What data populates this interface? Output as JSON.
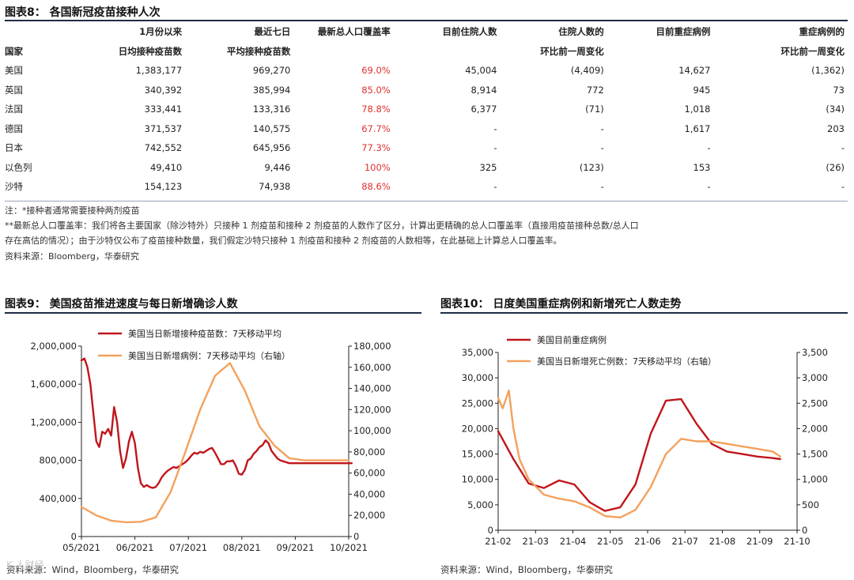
{
  "table": {
    "title": "图表8：   各国新冠疫苗接种人次",
    "header_row1": [
      "",
      "1月份以来",
      "最近七日",
      "最新总人口覆盖率",
      "目前住院人数",
      "住院人数的",
      "目前重症病例",
      "重症病例的"
    ],
    "header_row2": [
      "国家",
      "日均接种疫苗数",
      "平均接种疫苗数",
      "",
      "",
      "环比前一周变化",
      "",
      "环比前一周变化"
    ],
    "rows": [
      [
        "美国",
        "1,383,177",
        "969,270",
        "69.0%",
        "45,004",
        "(4,409)",
        "14,627",
        "(1,362)"
      ],
      [
        "英国",
        "340,392",
        "385,994",
        "85.0%",
        "8,914",
        "772",
        "945",
        "73"
      ],
      [
        "法国",
        "333,441",
        "133,316",
        "78.8%",
        "6,377",
        "(71)",
        "1,018",
        "(34)"
      ],
      [
        "德国",
        "371,537",
        "140,575",
        "67.7%",
        "-",
        "-",
        "1,617",
        "203"
      ],
      [
        "日本",
        "742,552",
        "645,956",
        "77.3%",
        "-",
        "-",
        "-",
        "-"
      ],
      [
        "以色列",
        "49,410",
        "9,446",
        "100%",
        "325",
        "(123)",
        "153",
        "(26)"
      ],
      [
        "沙特",
        "154,123",
        "74,938",
        "88.6%",
        "-",
        "-",
        "-",
        "-"
      ]
    ],
    "notes": [
      "注：*接种者通常需要接种两剂疫苗",
      "**最新总人口覆盖率：我们将各主要国家（除沙特外）只接种 1 剂疫苗和接种 2 剂疫苗的人数作了区分，计算出更精确的总人口覆盖率（直接用疫苗接种总数/总人口",
      "存在高估的情况）；由于沙特仅公布了疫苗接种数量，我们假定沙特只接种 1 剂疫苗和接种 2 剂疫苗的人数相等，在此基础上计算总人口覆盖率。",
      "资料来源：Bloomberg，华泰研究"
    ]
  },
  "colors": {
    "red": "#c0161c",
    "orange": "#f3a15d",
    "accent_red_text": "#e03030",
    "rule": "#1f2a44"
  },
  "chart_data": [
    {
      "type": "line",
      "title": "图表9：   美国疫苗推进速度与每日新增确诊人数",
      "x_tick_labels": [
        "05/2021",
        "06/2021",
        "07/2021",
        "08/2021",
        "09/2021",
        "10/2021"
      ],
      "y_left_ticks": [
        "0",
        "400,000",
        "800,000",
        "1,200,000",
        "1,600,000",
        "2,000,000"
      ],
      "y_left_lim": [
        0,
        2000000
      ],
      "y_right_ticks": [
        "0",
        "20,000",
        "40,000",
        "60,000",
        "80,000",
        "100,000",
        "120,000",
        "140,000",
        "160,000",
        "180,000"
      ],
      "y_right_lim": [
        0,
        180000
      ],
      "legend_position": "top",
      "series": [
        {
          "name": "美国当日新增接种疫苗数：7天移动平均",
          "axis": "left",
          "color": "#c0161c",
          "x": [
            0,
            2,
            4,
            6,
            8,
            10,
            12,
            14,
            16,
            18,
            20,
            22,
            24,
            26,
            28,
            30,
            32,
            34,
            36,
            38,
            40,
            42,
            44,
            46,
            48,
            50,
            52,
            54,
            56,
            58,
            60,
            62,
            64,
            66,
            68,
            70,
            72,
            74,
            76,
            78,
            80,
            82,
            84,
            86,
            88,
            90,
            92,
            94,
            96,
            98,
            100,
            102,
            104,
            106,
            108,
            110,
            112,
            114,
            116,
            118,
            120,
            122,
            124,
            126,
            128,
            130,
            132,
            134,
            136,
            138,
            140,
            142,
            144,
            146,
            148,
            150,
            152,
            154,
            156,
            158,
            160,
            162,
            164,
            166,
            168,
            170,
            172,
            174,
            176,
            178,
            180,
            182
          ],
          "values": [
            1850000,
            1870000,
            1780000,
            1600000,
            1300000,
            1000000,
            940000,
            1100000,
            1080000,
            1130000,
            1060000,
            1360000,
            1200000,
            900000,
            720000,
            820000,
            1000000,
            1100000,
            980000,
            720000,
            560000,
            520000,
            540000,
            520000,
            510000,
            520000,
            560000,
            620000,
            660000,
            690000,
            710000,
            730000,
            720000,
            740000,
            760000,
            780000,
            810000,
            850000,
            880000,
            870000,
            890000,
            880000,
            900000,
            920000,
            930000,
            880000,
            820000,
            760000,
            760000,
            790000,
            790000,
            800000,
            740000,
            660000,
            650000,
            700000,
            800000,
            820000,
            870000,
            900000,
            940000,
            960000,
            1010000,
            980000,
            900000,
            860000,
            820000,
            800000,
            790000,
            780000,
            770000,
            770000,
            770000,
            770000,
            770000,
            770000,
            770000,
            770000,
            770000,
            770000,
            770000,
            770000,
            770000,
            770000,
            770000,
            770000,
            770000,
            770000,
            770000,
            770000,
            770000,
            770000
          ]
        },
        {
          "name": "美国当日新增病例：7天移动平均（右轴）",
          "axis": "right",
          "color": "#f3a15d",
          "x": [
            0,
            10,
            20,
            30,
            40,
            50,
            60,
            70,
            80,
            90,
            100,
            110,
            120,
            130,
            140,
            150,
            160,
            170,
            180
          ],
          "values": [
            28000,
            20000,
            15000,
            13500,
            14000,
            18000,
            42000,
            80000,
            120000,
            152000,
            164000,
            138000,
            104000,
            86000,
            74000,
            72000,
            72000,
            72000,
            72000
          ]
        }
      ]
    },
    {
      "type": "line",
      "title": "图表10：   日度美国重症病例和新增死亡人数走势",
      "x_tick_labels": [
        "21-02",
        "21-03",
        "21-04",
        "21-05",
        "21-06",
        "21-07",
        "21-08",
        "21-09",
        "21-10"
      ],
      "y_left_ticks": [
        "0",
        "5,000",
        "10,000",
        "15,000",
        "20,000",
        "25,000",
        "30,000",
        "35,000"
      ],
      "y_left_lim": [
        0,
        35000
      ],
      "y_right_ticks": [
        "0",
        "500",
        "1,000",
        "1,500",
        "2,000",
        "2,500",
        "3,000",
        "3,500"
      ],
      "y_right_lim": [
        0,
        3500
      ],
      "legend_position": "top",
      "series": [
        {
          "name": "美国目前重症病例",
          "axis": "left",
          "color": "#c0161c",
          "x": [
            0,
            0.5,
            1,
            1.5,
            2,
            2.5,
            3,
            3.5,
            4,
            4.5,
            5,
            5.5,
            6,
            6.5,
            7,
            7.5,
            8,
            8.5,
            9,
            9.25
          ],
          "values": [
            19500,
            14000,
            9200,
            8300,
            9800,
            9000,
            5500,
            3800,
            4500,
            9000,
            19000,
            25500,
            25800,
            21000,
            17000,
            15500,
            15000,
            14500,
            14200,
            14000
          ]
        },
        {
          "name": "美国当日新增死亡例数：7天移动平均（右轴）",
          "axis": "right",
          "color": "#f3a15d",
          "x": [
            0,
            0.15,
            0.35,
            0.5,
            0.7,
            1,
            1.5,
            2,
            2.5,
            3,
            3.5,
            4,
            4.5,
            5,
            5.5,
            6,
            6.5,
            7,
            7.5,
            8,
            8.5,
            9,
            9.25
          ],
          "values": [
            2600,
            2400,
            2750,
            2000,
            1400,
            1000,
            700,
            620,
            570,
            450,
            280,
            250,
            400,
            850,
            1500,
            1800,
            1750,
            1750,
            1700,
            1650,
            1600,
            1550,
            1450
          ]
        }
      ]
    }
  ],
  "sources": {
    "left": "资料来源：Wind，Bloomberg，华泰研究",
    "right": "资料来源：Wind，Bloomberg，华泰研究"
  },
  "watermark": "K 人财经"
}
